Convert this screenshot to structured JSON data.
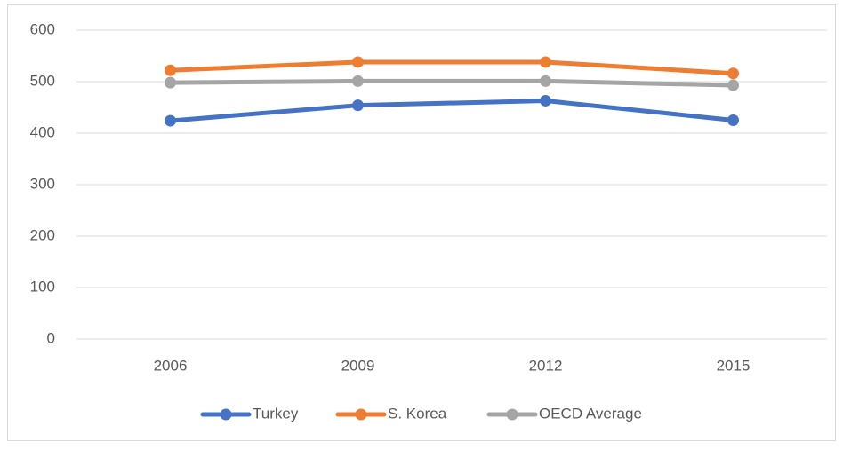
{
  "chart_data": {
    "type": "line",
    "categories": [
      "2006",
      "2009",
      "2012",
      "2015"
    ],
    "series": [
      {
        "name": "Turkey",
        "color": "#4472c4",
        "values": [
          424,
          454,
          463,
          425
        ]
      },
      {
        "name": "S. Korea",
        "color": "#ed7d31",
        "values": [
          522,
          538,
          538,
          516
        ]
      },
      {
        "name": "OECD Average",
        "color": "#a5a5a5",
        "values": [
          498,
          501,
          501,
          493
        ]
      }
    ],
    "ylim": [
      0,
      600
    ],
    "yticks": [
      0,
      100,
      200,
      300,
      400,
      500,
      600
    ],
    "grid": true,
    "legend": "bottom"
  }
}
